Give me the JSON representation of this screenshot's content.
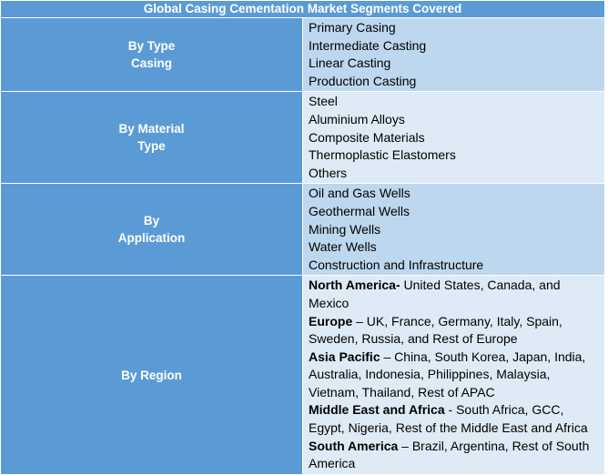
{
  "title": "Global Casing Cementation Market Segments Covered",
  "segments": [
    {
      "label_lines": [
        "By Type",
        "Casing"
      ],
      "items": [
        "Primary Casing",
        "Intermediate Casting",
        "Linear Casting",
        "Production Casting"
      ]
    },
    {
      "label_lines": [
        "By Material",
        "Type"
      ],
      "items": [
        "Steel",
        "Aluminium Alloys",
        "Composite Materials",
        "Thermoplastic Elastomers",
        "Others"
      ]
    },
    {
      "label_lines": [
        "By",
        "Application"
      ],
      "items": [
        "Oil and Gas Wells",
        "Geothermal Wells",
        "Mining Wells",
        "Water Wells",
        "Construction and Infrastructure"
      ]
    },
    {
      "label_lines": [
        "By Region"
      ],
      "regions": [
        {
          "name": "North America-",
          "detail": " United States, Canada, and Mexico"
        },
        {
          "name": "Europe",
          "detail": " – UK, France, Germany, Italy, Spain, Sweden, Russia, and Rest of Europe"
        },
        {
          "name": "Asia Pacific",
          "detail": " – China, South Korea, Japan, India, Australia, Indonesia, Philippines, Malaysia, Vietnam, Thailand, Rest of APAC"
        },
        {
          "name": "Middle East and Africa",
          "detail": " - South Africa, GCC, Egypt, Nigeria, Rest of the Middle East and Africa"
        },
        {
          "name": "South America",
          "detail": " – Brazil, Argentina, Rest of South America"
        }
      ]
    }
  ]
}
